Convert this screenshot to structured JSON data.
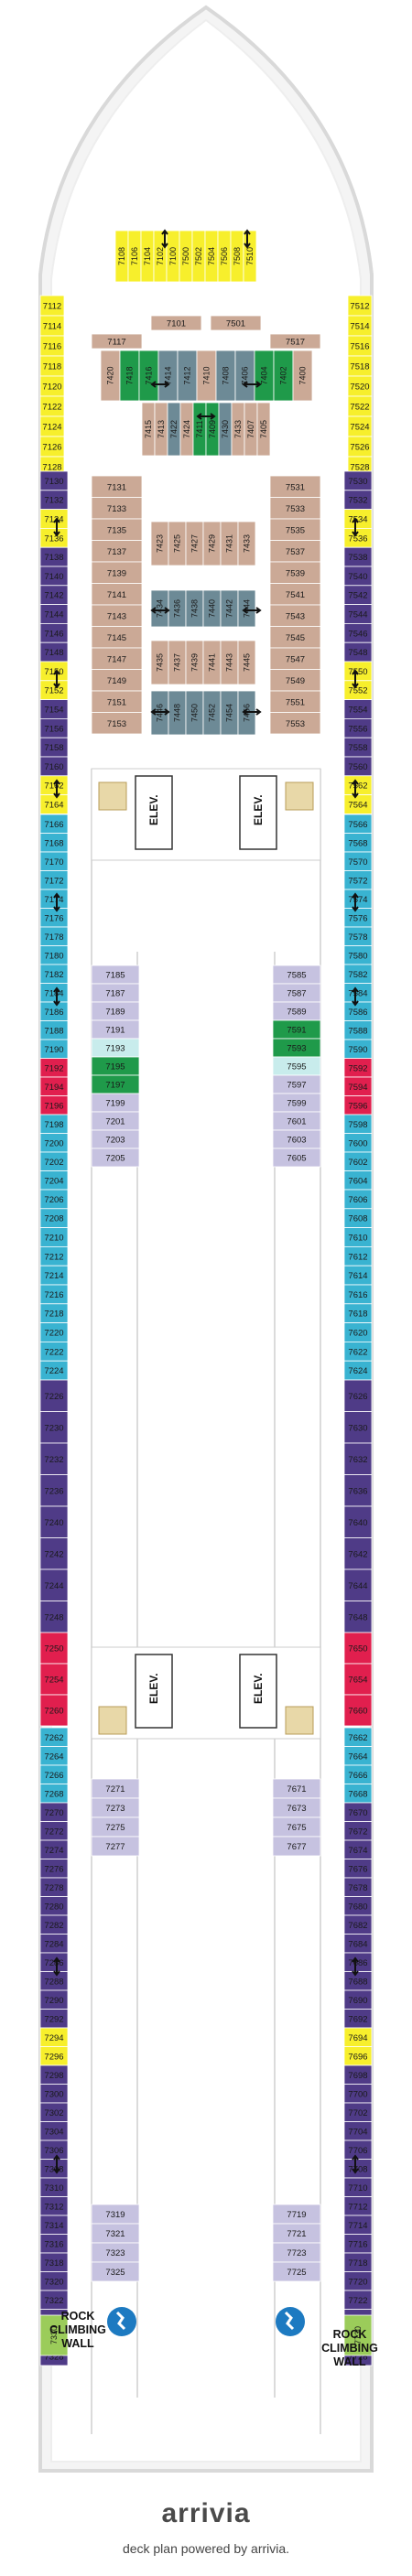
{
  "colors": {
    "yellow": "#f7ef2c",
    "tan": "#cba996",
    "steel": "#6d8a96",
    "green": "#1f9a4a",
    "lavender": "#c6c2e0",
    "cyan": "#39b3d1",
    "purple": "#4f3b87",
    "red": "#e11f4e",
    "aqua": "#c8ecec",
    "hull": "#d9d9d9",
    "rock": "#9bcc5a"
  },
  "labels": {
    "elevator": "ELEV.",
    "rock_line1": "ROCK",
    "rock_line2": "CLIMBING",
    "rock_line3": "WALL"
  },
  "footer": {
    "brand": "arrivia",
    "tagline": "deck plan powered by arrivia."
  },
  "cabins": {
    "bow_vertical": [
      "7108",
      "7106",
      "7104",
      "7102",
      "7100",
      "7500",
      "7502",
      "7504",
      "7506",
      "7508",
      "7510"
    ],
    "bow_left": [
      "7112",
      "7114",
      "7116",
      "7118",
      "7120",
      "7122",
      "7124",
      "7126",
      "7128"
    ],
    "bow_right": [
      "7512",
      "7514",
      "7516",
      "7518",
      "7520",
      "7522",
      "7524",
      "7526",
      "7528"
    ],
    "fwd_inner_top": [
      "7101",
      "7501"
    ],
    "fwd_inner_top2": [
      "7117",
      "7517"
    ],
    "fwd_vertical_row1": [
      "7420",
      "7418",
      "7416",
      "7414",
      "7412",
      "7410",
      "7408",
      "7406",
      "7404",
      "7402",
      "7400"
    ],
    "fwd_vertical_row2": [
      "7415",
      "7413",
      "7422",
      "7424",
      "7411",
      "7409",
      "7430",
      "7433",
      "7407",
      "7405"
    ],
    "fwd_vertical_row3": [
      "7423",
      "7425",
      "7427",
      "7429",
      "7431",
      "7433"
    ],
    "fwd_vertical_row4": [
      "7434",
      "7436",
      "7438",
      "7440",
      "7442",
      "7444"
    ],
    "fwd_vertical_row5": [
      "7435",
      "7437",
      "7439",
      "7441",
      "7443",
      "7445"
    ],
    "fwd_vertical_row6": [
      "7446",
      "7448",
      "7450",
      "7452",
      "7454",
      "7456"
    ],
    "mid_left_inner": [
      "7131",
      "7133",
      "7135",
      "7137",
      "7139",
      "7141",
      "7143",
      "7145",
      "7147",
      "7149",
      "7151",
      "7153"
    ],
    "mid_right_inner": [
      "7531",
      "7533",
      "7535",
      "7537",
      "7539",
      "7541",
      "7543",
      "7545",
      "7547",
      "7549",
      "7551",
      "7553"
    ],
    "port_outer_1": [
      "7130",
      "7132",
      "7134",
      "7136",
      "7138",
      "7140",
      "7142",
      "7144",
      "7146",
      "7148",
      "7150",
      "7152",
      "7154",
      "7156",
      "7158",
      "7160",
      "7162",
      "7164"
    ],
    "stbd_outer_1": [
      "7530",
      "7532",
      "7534",
      "7536",
      "7538",
      "7540",
      "7542",
      "7544",
      "7546",
      "7548",
      "7550",
      "7552",
      "7554",
      "7556",
      "7558",
      "7560",
      "7562",
      "7564"
    ],
    "port_outer_2": [
      "7166",
      "7168",
      "7170",
      "7172",
      "7174",
      "7176",
      "7178",
      "7180",
      "7182",
      "7184",
      "7186",
      "7188",
      "7190",
      "7192",
      "7194",
      "7196",
      "7198",
      "7200",
      "7202",
      "7204"
    ],
    "stbd_outer_2": [
      "7566",
      "7568",
      "7570",
      "7572",
      "7574",
      "7576",
      "7578",
      "7580",
      "7582",
      "7584",
      "7586",
      "7588",
      "7590",
      "7592",
      "7594",
      "7596",
      "7598",
      "7600",
      "7602",
      "7604"
    ],
    "port_inner_2": [
      "7185",
      "7187",
      "7189",
      "7191",
      "7193",
      "7195",
      "7197",
      "7199",
      "7201",
      "7203",
      "7205"
    ],
    "stbd_inner_2": [
      "7585",
      "7587",
      "7589",
      "7591",
      "7593",
      "7595",
      "7597",
      "7599",
      "7601",
      "7603",
      "7605"
    ],
    "port_outer_3": [
      "7206",
      "7208",
      "7210",
      "7212",
      "7214",
      "7216",
      "7218",
      "7220",
      "7222",
      "7224"
    ],
    "stbd_outer_3": [
      "7606",
      "7608",
      "7610",
      "7612",
      "7614",
      "7616",
      "7618",
      "7620",
      "7622",
      "7624"
    ],
    "port_outer_4": [
      "7226",
      "7230",
      "7232",
      "7236",
      "7240",
      "7242",
      "7244",
      "7248"
    ],
    "stbd_outer_4": [
      "7626",
      "7630",
      "7632",
      "7636",
      "7640",
      "7642",
      "7644",
      "7648"
    ],
    "port_outer_5": [
      "7250",
      "7254",
      "7260"
    ],
    "stbd_outer_5": [
      "7650",
      "7654",
      "7660"
    ],
    "port_outer_6": [
      "7262",
      "7264",
      "7266",
      "7268",
      "7270",
      "7272",
      "7274",
      "7276",
      "7278",
      "7280",
      "7282",
      "7284",
      "7286",
      "7288",
      "7290",
      "7292",
      "7294",
      "7296",
      "7298",
      "7300",
      "7302",
      "7304",
      "7306",
      "7308",
      "7310",
      "7312",
      "7314",
      "7316",
      "7318",
      "7320",
      "7322",
      "7324",
      "7326",
      "7328"
    ],
    "stbd_outer_6": [
      "7662",
      "7664",
      "7666",
      "7668",
      "7670",
      "7672",
      "7674",
      "7676",
      "7678",
      "7680",
      "7682",
      "7684",
      "7686",
      "7688",
      "7690",
      "7692",
      "7694",
      "7696",
      "7698",
      "7700",
      "7702",
      "7704",
      "7706",
      "7708",
      "7710",
      "7712",
      "7714",
      "7716",
      "7718",
      "7720",
      "7722",
      "7724",
      "7726",
      "7728"
    ],
    "port_inner_6": [
      "7271",
      "7273",
      "7275",
      "7277"
    ],
    "stbd_inner_6": [
      "7671",
      "7673",
      "7675",
      "7677"
    ],
    "port_inner_7": [
      "7319",
      "7321",
      "7323",
      "7325"
    ],
    "stbd_inner_7": [
      "7719",
      "7721",
      "7723",
      "7725"
    ],
    "port_aft": [
      "7330"
    ],
    "stbd_aft": [
      "7730"
    ]
  }
}
